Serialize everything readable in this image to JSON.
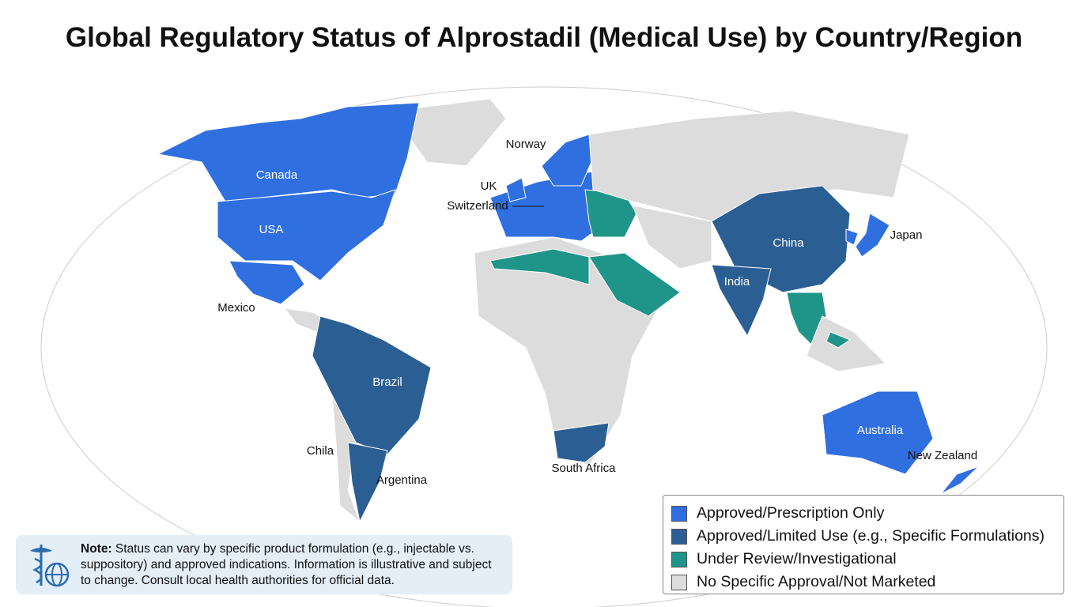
{
  "title": "Global Regulatory Status of Alprostadil (Medical Use) by Country/Region",
  "labels": [
    "Canada",
    "USA",
    "Mexico",
    "Brazil",
    "Chila",
    "Argentina",
    "Norway",
    "UK",
    "Switzerland",
    "South Africa",
    "China",
    "India",
    "Japan",
    "Australia",
    "New Zealand"
  ],
  "legend": [
    {
      "label": "Approved/Prescription Only",
      "color": "#2f6fe0"
    },
    {
      "label": "Approved/Limited Use (e.g., Specific Formulations)",
      "color": "#2b5f94"
    },
    {
      "label": "Under Review/Investigational",
      "color": "#1f9488"
    },
    {
      "label": "No Specific Approval/Not Marketed",
      "color": "#dcdcdc"
    }
  ],
  "note": {
    "heading": "Note:",
    "text": "Status can vary by specific product formulation (e.g., injectable vs. suppository) and approved indications. Information is illustrative and subject to change. Consult local health authorities for official data."
  }
}
